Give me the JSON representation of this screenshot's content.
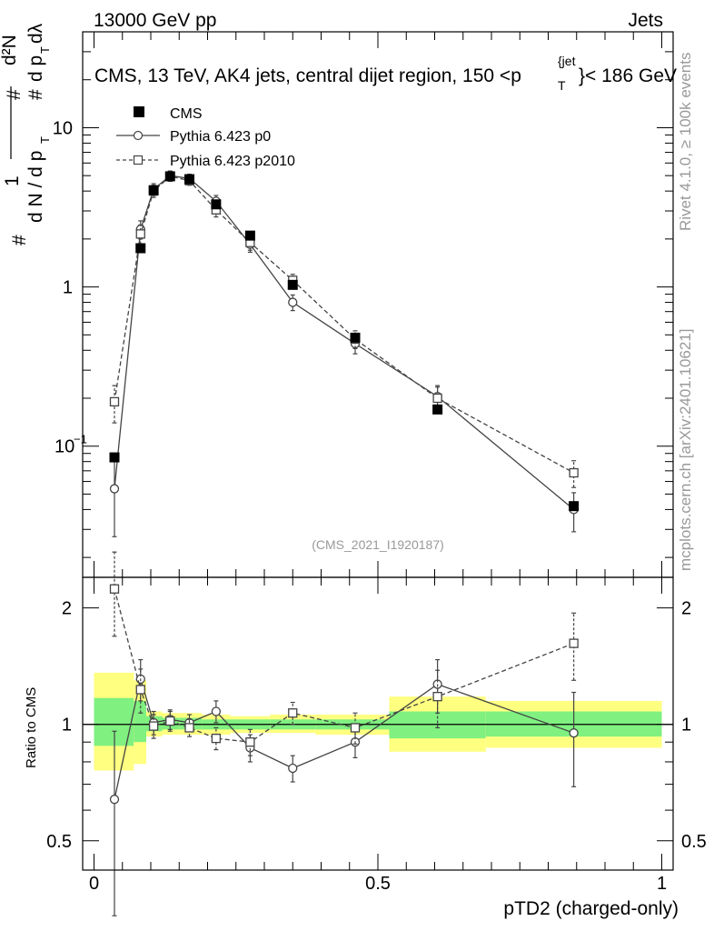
{
  "header": {
    "energy_label": "13000 GeV pp",
    "category_label": "Jets"
  },
  "side_labels": {
    "rivet": "Rivet 4.1.0, ≥ 100k events",
    "mcplots": "mcplots.cern.ch [arXiv:2401.10621]"
  },
  "colors": {
    "green_band": "#80f080",
    "yellow_band": "#ffff80",
    "mc": "#444444"
  },
  "chart_data": [
    {
      "type": "line",
      "panel": "main",
      "title": "CMS, 13 TeV, AK4 jets, central dijet region, 150 < p_T^{jet} < 186 GeV",
      "title_parts": {
        "pre": "CMS, 13 TeV, AK4 jets, central dijet region, 150 <p",
        "sub": "T",
        "sup": "{jet",
        "post": "}< 186 GeV"
      },
      "ylabel": "1/(dN/dp_T) d²N/(dp_T dλ)",
      "yscale": "log",
      "ylim": [
        0.015,
        40
      ],
      "xlim": [
        -0.02,
        1.02
      ],
      "yticks": [
        {
          "v": 0.1,
          "base": "10",
          "exp": "−1"
        },
        {
          "v": 1,
          "label": "1"
        },
        {
          "v": 10,
          "label": "10"
        }
      ],
      "watermark": "(CMS_2021_I1920187)",
      "legend": {
        "position": "top-left",
        "entries": [
          "CMS",
          "Pythia 6.423 p0",
          "Pythia 6.423 p2010"
        ]
      },
      "series": [
        {
          "name": "CMS",
          "style": "data",
          "x": [
            0.036,
            0.082,
            0.105,
            0.134,
            0.168,
            0.215,
            0.275,
            0.35,
            0.46,
            0.605,
            0.845
          ],
          "y": [
            0.085,
            1.75,
            4.05,
            4.95,
            4.75,
            3.3,
            2.1,
            1.03,
            0.48,
            0.17,
            0.042
          ],
          "err": [
            0.002,
            0.05,
            0.1,
            0.1,
            0.1,
            0.08,
            0.05,
            0.03,
            0.015,
            0.006,
            0.002
          ]
        },
        {
          "name": "Pythia 6.423 p0",
          "style": "solid-circle",
          "x": [
            0.036,
            0.082,
            0.105,
            0.134,
            0.168,
            0.215,
            0.275,
            0.35,
            0.46,
            0.605,
            0.845
          ],
          "y": [
            0.054,
            2.3,
            4.1,
            5.0,
            4.8,
            3.45,
            1.85,
            0.8,
            0.44,
            0.205,
            0.04
          ],
          "err": [
            0.027,
            0.3,
            0.35,
            0.35,
            0.3,
            0.3,
            0.2,
            0.09,
            0.06,
            0.035,
            0.011
          ]
        },
        {
          "name": "Pythia 6.423 p2010",
          "style": "dashed-square",
          "x": [
            0.036,
            0.082,
            0.105,
            0.134,
            0.168,
            0.215,
            0.275,
            0.35,
            0.46,
            0.605,
            0.845
          ],
          "y": [
            0.19,
            2.15,
            4.0,
            4.95,
            4.65,
            3.05,
            1.9,
            1.1,
            0.47,
            0.2,
            0.068
          ],
          "err": [
            0.05,
            0.3,
            0.35,
            0.35,
            0.3,
            0.3,
            0.2,
            0.1,
            0.06,
            0.035,
            0.013
          ]
        }
      ]
    },
    {
      "type": "line",
      "panel": "ratio",
      "ylabel": "Ratio to CMS",
      "xlabel": "pTD2 (charged-only)",
      "yscale": "log",
      "ylim": [
        0.42,
        2.4
      ],
      "xlim": [
        -0.02,
        1.02
      ],
      "xticks": [
        {
          "v": 0,
          "label": "0"
        },
        {
          "v": 0.5,
          "label": "0.5"
        },
        {
          "v": 1,
          "label": "1"
        }
      ],
      "yticks": [
        {
          "v": 0.5,
          "label": "0.5"
        },
        {
          "v": 1,
          "label": "1"
        },
        {
          "v": 2,
          "label": "2"
        }
      ],
      "bands": [
        {
          "x0": 0.0,
          "x1": 0.07,
          "green": [
            0.88,
            1.17
          ],
          "yellow": [
            0.76,
            1.36
          ]
        },
        {
          "x0": 0.07,
          "x1": 0.092,
          "green": [
            0.9,
            1.15
          ],
          "yellow": [
            0.79,
            1.3
          ]
        },
        {
          "x0": 0.092,
          "x1": 0.12,
          "green": [
            0.96,
            1.05
          ],
          "yellow": [
            0.93,
            1.08
          ]
        },
        {
          "x0": 0.12,
          "x1": 0.15,
          "green": [
            0.97,
            1.04
          ],
          "yellow": [
            0.94,
            1.07
          ]
        },
        {
          "x0": 0.15,
          "x1": 0.19,
          "green": [
            0.97,
            1.04
          ],
          "yellow": [
            0.94,
            1.07
          ]
        },
        {
          "x0": 0.19,
          "x1": 0.24,
          "green": [
            0.97,
            1.03
          ],
          "yellow": [
            0.94,
            1.06
          ]
        },
        {
          "x0": 0.24,
          "x1": 0.31,
          "green": [
            0.97,
            1.03
          ],
          "yellow": [
            0.95,
            1.05
          ]
        },
        {
          "x0": 0.31,
          "x1": 0.39,
          "green": [
            0.97,
            1.03
          ],
          "yellow": [
            0.95,
            1.06
          ]
        },
        {
          "x0": 0.39,
          "x1": 0.52,
          "green": [
            0.97,
            1.03
          ],
          "yellow": [
            0.94,
            1.06
          ]
        },
        {
          "x0": 0.52,
          "x1": 0.69,
          "green": [
            0.92,
            1.08
          ],
          "yellow": [
            0.85,
            1.18
          ]
        },
        {
          "x0": 0.69,
          "x1": 1.0,
          "green": [
            0.93,
            1.08
          ],
          "yellow": [
            0.87,
            1.15
          ]
        }
      ],
      "series": [
        {
          "name": "Pythia 6.423 p0",
          "style": "solid-circle",
          "x": [
            0.036,
            0.082,
            0.105,
            0.134,
            0.168,
            0.215,
            0.275,
            0.35,
            0.46,
            0.605,
            0.845
          ],
          "y": [
            0.64,
            1.31,
            1.01,
            1.03,
            1.01,
            1.08,
            0.87,
            0.77,
            0.9,
            1.27,
            0.95
          ],
          "err": [
            0.32,
            0.16,
            0.07,
            0.06,
            0.05,
            0.07,
            0.07,
            0.06,
            0.08,
            0.2,
            0.26
          ]
        },
        {
          "name": "Pythia 6.423 p2010",
          "style": "dashed-square",
          "x": [
            0.036,
            0.082,
            0.105,
            0.134,
            0.168,
            0.215,
            0.275,
            0.35,
            0.46,
            0.605,
            0.845
          ],
          "y": [
            2.24,
            1.23,
            0.99,
            1.02,
            0.98,
            0.92,
            0.9,
            1.07,
            0.98,
            1.18,
            1.62
          ],
          "err": [
            0.55,
            0.16,
            0.07,
            0.06,
            0.05,
            0.06,
            0.07,
            0.07,
            0.09,
            0.2,
            0.32
          ]
        }
      ]
    }
  ]
}
